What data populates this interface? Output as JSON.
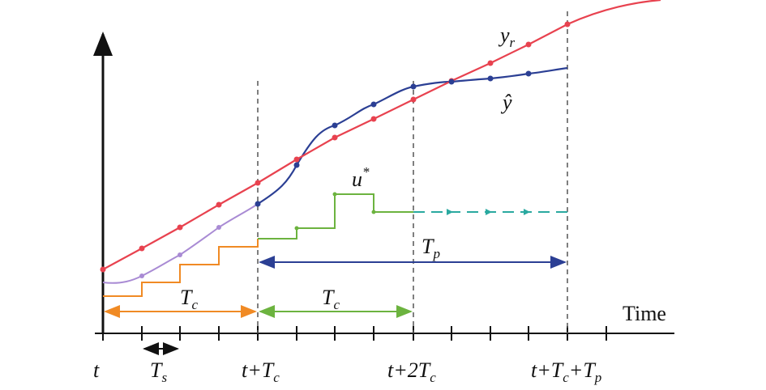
{
  "labels": {
    "y_r": {
      "text": "y",
      "sub": "r"
    },
    "y_hat": "ŷ",
    "u_star": {
      "text": "u",
      "sup": "*"
    },
    "t_p": {
      "text": "T",
      "sub": "p"
    },
    "t_c_first": {
      "text": "T",
      "sub": "c"
    },
    "t_c_second": {
      "text": "T",
      "sub": "c"
    },
    "time_axis": "Time",
    "t": "t",
    "t_s": {
      "text": "T",
      "sub": "s"
    },
    "t_plus_tc": {
      "parts": [
        "t+T",
        "c"
      ]
    },
    "t_plus_2tc": {
      "parts": [
        "t+2T",
        "c"
      ]
    },
    "t_plus_tc_tp": {
      "parts": [
        "t+T",
        "c",
        "+T",
        "p"
      ]
    }
  }
}
